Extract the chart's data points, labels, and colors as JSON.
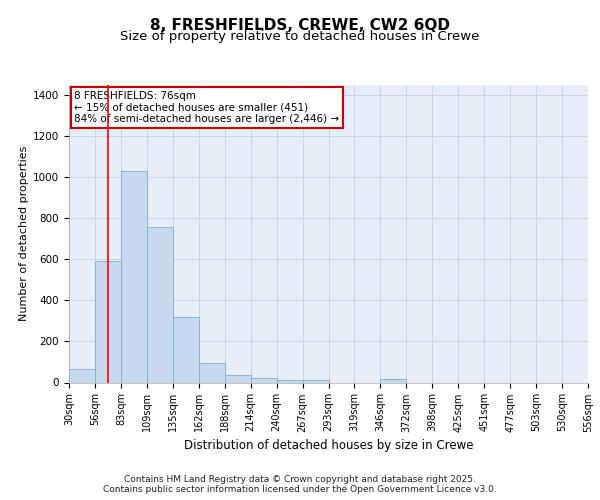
{
  "title1": "8, FRESHFIELDS, CREWE, CW2 6QD",
  "title2": "Size of property relative to detached houses in Crewe",
  "xlabel": "Distribution of detached houses by size in Crewe",
  "ylabel": "Number of detached properties",
  "bar_values": [
    65,
    590,
    1030,
    760,
    320,
    95,
    35,
    20,
    10,
    10,
    0,
    0,
    15,
    0,
    0,
    0,
    0,
    0,
    0,
    0
  ],
  "categories": [
    "30sqm",
    "56sqm",
    "83sqm",
    "109sqm",
    "135sqm",
    "162sqm",
    "188sqm",
    "214sqm",
    "240sqm",
    "267sqm",
    "293sqm",
    "319sqm",
    "346sqm",
    "372sqm",
    "398sqm",
    "425sqm",
    "451sqm",
    "477sqm",
    "503sqm",
    "530sqm",
    "556sqm"
  ],
  "bar_color": "#c8d8ef",
  "bar_edge_color": "#7aadd4",
  "grid_color": "#c8cfe0",
  "bg_color": "#e8eef8",
  "red_line_x": 1.5,
  "annotation_text": "8 FRESHFIELDS: 76sqm\n← 15% of detached houses are smaller (451)\n84% of semi-detached houses are larger (2,446) →",
  "annotation_box_color": "#ffffff",
  "annotation_border_color": "#cc0000",
  "footer_text": "Contains HM Land Registry data © Crown copyright and database right 2025.\nContains public sector information licensed under the Open Government Licence v3.0.",
  "ylim": [
    0,
    1450
  ],
  "title1_fontsize": 11,
  "title2_fontsize": 9.5,
  "xlabel_fontsize": 8.5,
  "ylabel_fontsize": 8,
  "tick_fontsize": 7,
  "footer_fontsize": 6.5,
  "annotation_fontsize": 7.5
}
